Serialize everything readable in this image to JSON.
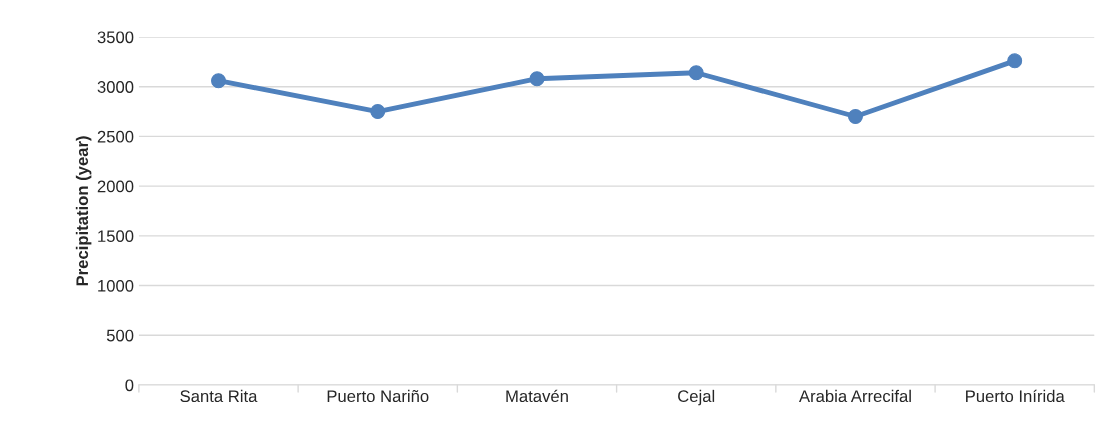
{
  "chart_data": {
    "type": "line",
    "ylabel": "Precipitation (year)",
    "categories": [
      "Santa Rita",
      "Puerto Nariño",
      "Matavén",
      "Cejal",
      "Arabia Arrecifal",
      "Puerto Inírida"
    ],
    "series": [
      {
        "color": "#4f81bd",
        "values": [
          3060,
          2750,
          3080,
          3140,
          2700,
          3260
        ]
      }
    ],
    "ylim": [
      0,
      3500
    ],
    "yticks": [
      0,
      500,
      1000,
      1500,
      2000,
      2500,
      3000,
      3500
    ],
    "grid": "y",
    "marker": "circle",
    "line_style": "solid"
  }
}
